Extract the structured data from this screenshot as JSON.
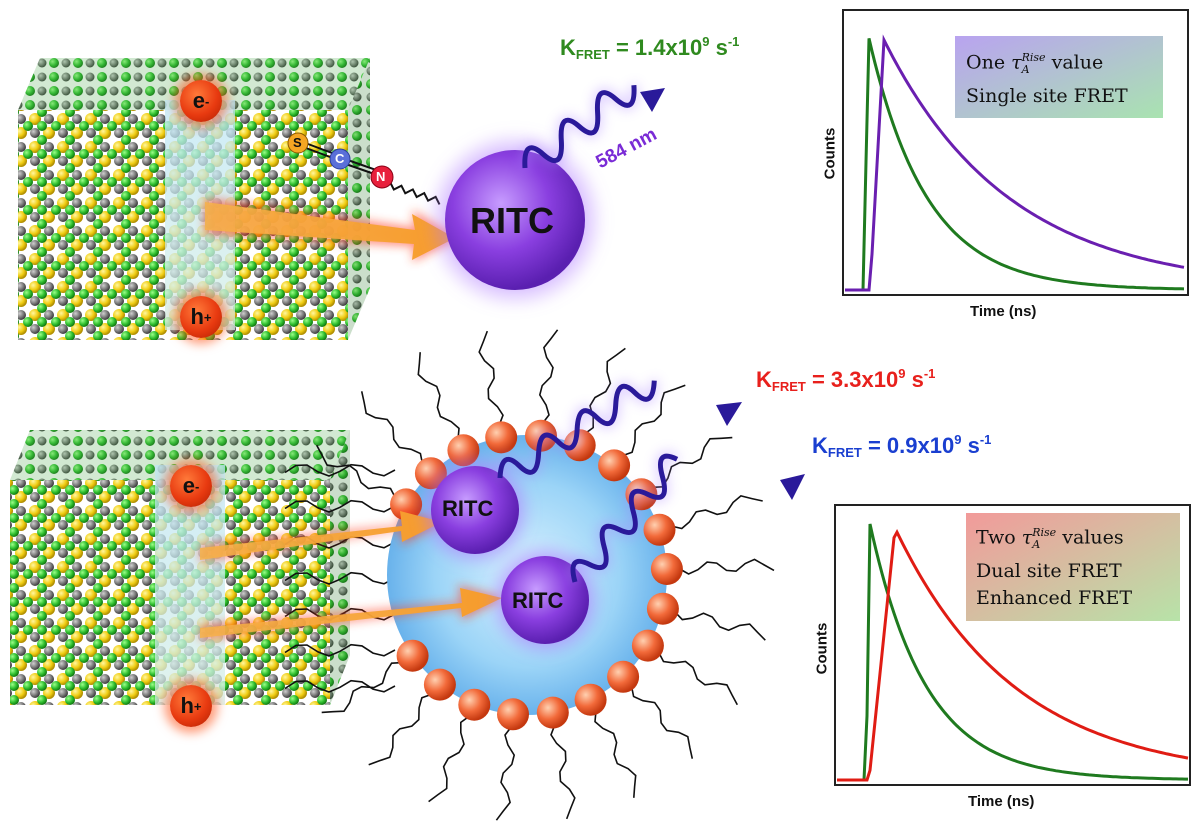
{
  "top": {
    "kfret": {
      "symbol": "K",
      "sub": "FRET",
      "value": " = 1.4x10",
      "exp": "9",
      "unit": " s",
      "unit_exp": "-1",
      "color": "#2f8a1f"
    },
    "dye_label": "RITC",
    "wavelength": "584 nm",
    "electron": {
      "letter": "e",
      "sign": "-"
    },
    "hole": {
      "letter": "h",
      "sign": "+"
    },
    "atoms": {
      "s": "S",
      "c": "C",
      "n": "N"
    },
    "chart": {
      "ylabel": "Counts",
      "xlabel": "Time (ns)",
      "legend": {
        "prefix": "One ",
        "tau": "τ",
        "sub": "A",
        "sup": "Rise",
        "suffix": " value",
        "line2": "Single site FRET"
      }
    }
  },
  "bottom": {
    "kfret_red": {
      "symbol": "K",
      "sub": "FRET",
      "value": " = 3.3x10",
      "exp": "9",
      "unit": " s",
      "unit_exp": "-1",
      "color": "#e8201c"
    },
    "kfret_blue": {
      "symbol": "K",
      "sub": "FRET",
      "value": " = 0.9x10",
      "exp": "9",
      "unit": " s",
      "unit_exp": "-1",
      "color": "#1a3fd0"
    },
    "dye_label_1": "RITC",
    "dye_label_2": "RITC",
    "electron": {
      "letter": "e",
      "sign": "-"
    },
    "hole": {
      "letter": "h",
      "sign": "+"
    },
    "chart": {
      "ylabel": "Counts",
      "xlabel": "Time (ns)",
      "legend": {
        "prefix": "Two ",
        "tau": "τ",
        "sub": "A",
        "sup": "Rise",
        "suffix": " values",
        "line2": "Dual site FRET",
        "line3": "Enhanced FRET"
      }
    }
  },
  "colors": {
    "green_atom": "#3bd13b",
    "gray_atom": "#7a7a7a",
    "yellow_atom": "#f2d21b",
    "dye_purple": "#8a3fe0",
    "micelle_blue": "#7fc2f0",
    "arrow_orange": "#f7a43a"
  }
}
